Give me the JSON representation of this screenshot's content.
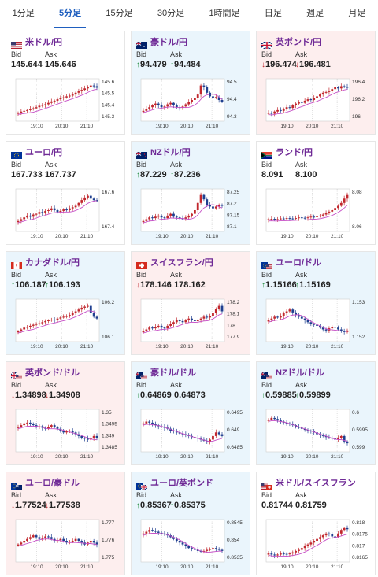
{
  "tabs": [
    {
      "label": "1分足",
      "active": false
    },
    {
      "label": "5分足",
      "active": true
    },
    {
      "label": "15分足",
      "active": false
    },
    {
      "label": "30分足",
      "active": false
    },
    {
      "label": "1時間足",
      "active": false
    },
    {
      "label": "日足",
      "active": false
    },
    {
      "label": "週足",
      "active": false
    },
    {
      "label": "月足",
      "active": false
    }
  ],
  "labels": {
    "bid": "Bid",
    "ask": "Ask"
  },
  "colors": {
    "bull": "#c1272d",
    "bear": "#1f3f8f",
    "ma": "#c64fc6",
    "tab_active": "#1f5fbf",
    "pair_text": "#6f2a96",
    "up_arrow": "#1f8a3a",
    "down_arrow": "#c1272d"
  },
  "cards": [
    {
      "name": "usd-jpy",
      "pair": "米ドル/円",
      "bg": "neutral",
      "flag": "us",
      "bid": "145.644",
      "ask": "145.646",
      "dir": "none",
      "chart_data": {
        "type": "candlestick",
        "x_ticks": [
          "19:10",
          "20:10",
          "21:10"
        ],
        "y_ticks": [
          "145.6",
          "145.5",
          "145.4",
          "145.3"
        ],
        "trend": "up",
        "points": [
          0.15,
          0.18,
          0.2,
          0.22,
          0.25,
          0.27,
          0.3,
          0.34,
          0.36,
          0.38,
          0.42,
          0.46,
          0.48,
          0.52,
          0.55,
          0.57,
          0.6,
          0.62,
          0.65,
          0.7,
          0.74,
          0.78,
          0.82,
          0.86,
          0.9,
          0.88,
          0.84
        ]
      }
    },
    {
      "name": "aud-jpy",
      "pair": "豪ドル/円",
      "bg": "up",
      "flag": "au",
      "bid": "94.479",
      "ask": "94.484",
      "dir": "up",
      "chart_data": {
        "type": "candlestick",
        "x_ticks": [
          "19:10",
          "20:10",
          "21:10"
        ],
        "y_ticks": [
          "94.5",
          "94.4",
          "94.3"
        ],
        "trend": "up",
        "points": [
          0.2,
          0.25,
          0.3,
          0.35,
          0.4,
          0.35,
          0.3,
          0.32,
          0.38,
          0.42,
          0.35,
          0.3,
          0.28,
          0.32,
          0.38,
          0.45,
          0.5,
          0.55,
          0.65,
          0.9,
          0.85,
          0.7,
          0.6,
          0.55,
          0.58,
          0.5,
          0.45
        ]
      }
    },
    {
      "name": "gbp-jpy",
      "pair": "英ポンド/円",
      "bg": "down",
      "flag": "gb",
      "bid": "196.474",
      "ask": "196.481",
      "dir": "down",
      "chart_data": {
        "type": "candlestick",
        "x_ticks": [
          "19:10",
          "20:10",
          "21:10"
        ],
        "y_ticks": [
          "196.4",
          "196.2",
          "196"
        ],
        "trend": "up",
        "points": [
          0.15,
          0.12,
          0.18,
          0.22,
          0.2,
          0.25,
          0.3,
          0.28,
          0.35,
          0.4,
          0.45,
          0.42,
          0.48,
          0.52,
          0.5,
          0.55,
          0.6,
          0.65,
          0.7,
          0.72,
          0.76,
          0.8,
          0.85,
          0.82,
          0.88,
          0.86,
          0.84
        ]
      }
    },
    {
      "name": "eur-jpy",
      "pair": "ユーロ/円",
      "bg": "neutral",
      "flag": "eu",
      "bid": "167.733",
      "ask": "167.737",
      "dir": "none",
      "chart_data": {
        "type": "candlestick",
        "x_ticks": [
          "19:10",
          "20:10",
          "21:10"
        ],
        "y_ticks": [
          "167.6",
          "167.4"
        ],
        "trend": "up",
        "points": [
          0.2,
          0.25,
          0.3,
          0.35,
          0.32,
          0.38,
          0.4,
          0.45,
          0.42,
          0.48,
          0.5,
          0.55,
          0.5,
          0.45,
          0.48,
          0.52,
          0.5,
          0.55,
          0.58,
          0.62,
          0.7,
          0.78,
          0.85,
          0.9,
          0.82,
          0.78,
          0.75
        ]
      }
    },
    {
      "name": "nzd-jpy",
      "pair": "NZドル/円",
      "bg": "up",
      "flag": "nz",
      "bid": "87.229",
      "ask": "87.236",
      "dir": "up",
      "chart_data": {
        "type": "candlestick",
        "x_ticks": [
          "19:10",
          "20:10",
          "21:10"
        ],
        "y_ticks": [
          "87.25",
          "87.2",
          "87.15",
          "87.1"
        ],
        "trend": "up",
        "points": [
          0.2,
          0.25,
          0.3,
          0.28,
          0.32,
          0.35,
          0.3,
          0.28,
          0.35,
          0.4,
          0.32,
          0.3,
          0.28,
          0.25,
          0.3,
          0.35,
          0.4,
          0.5,
          0.7,
          0.92,
          0.8,
          0.65,
          0.6,
          0.55,
          0.6,
          0.65,
          0.62
        ]
      }
    },
    {
      "name": "zar-jpy",
      "pair": "ランド/円",
      "bg": "neutral",
      "flag": "za",
      "bid": "8.091",
      "ask": "8.100",
      "dir": "none",
      "chart_data": {
        "type": "candlestick",
        "x_ticks": [
          "19:10",
          "20:10",
          "21:10"
        ],
        "y_ticks": [
          "8.08",
          "8.06"
        ],
        "trend": "up",
        "points": [
          0.25,
          0.26,
          0.24,
          0.25,
          0.27,
          0.26,
          0.28,
          0.27,
          0.26,
          0.28,
          0.3,
          0.29,
          0.28,
          0.3,
          0.32,
          0.31,
          0.33,
          0.35,
          0.38,
          0.42,
          0.46,
          0.5,
          0.56,
          0.62,
          0.7,
          0.82,
          0.92
        ]
      }
    },
    {
      "name": "cad-jpy",
      "pair": "カナダドル/円",
      "bg": "up",
      "flag": "ca",
      "bid": "106.187",
      "ask": "106.193",
      "dir": "up",
      "chart_data": {
        "type": "candlestick",
        "x_ticks": [
          "19:10",
          "20:10",
          "21:10"
        ],
        "y_ticks": [
          "106.2",
          "106.1"
        ],
        "trend": "up",
        "points": [
          0.2,
          0.25,
          0.3,
          0.32,
          0.35,
          0.38,
          0.4,
          0.42,
          0.45,
          0.48,
          0.5,
          0.52,
          0.5,
          0.55,
          0.58,
          0.6,
          0.62,
          0.65,
          0.7,
          0.75,
          0.8,
          0.85,
          0.88,
          0.9,
          0.7,
          0.6,
          0.55
        ]
      }
    },
    {
      "name": "chf-jpy",
      "pair": "スイスフラン/円",
      "bg": "down",
      "flag": "ch",
      "bid": "178.146",
      "ask": "178.162",
      "dir": "down",
      "chart_data": {
        "type": "candlestick",
        "x_ticks": [
          "19:10",
          "20:10",
          "21:10"
        ],
        "y_ticks": [
          "178.2",
          "178.1",
          "178",
          "177.9"
        ],
        "trend": "up",
        "points": [
          0.2,
          0.25,
          0.3,
          0.28,
          0.32,
          0.35,
          0.3,
          0.28,
          0.35,
          0.4,
          0.45,
          0.5,
          0.48,
          0.45,
          0.5,
          0.55,
          0.52,
          0.48,
          0.5,
          0.55,
          0.6,
          0.58,
          0.62,
          0.7,
          0.82,
          0.9,
          0.75
        ]
      }
    },
    {
      "name": "eur-usd",
      "pair": "ユーロ/ドル",
      "bg": "up",
      "flag": "eu-us",
      "bid": "1.15166",
      "ask": "1.15169",
      "dir": "up",
      "chart_data": {
        "type": "candlestick",
        "x_ticks": [
          "19:10",
          "20:10",
          "21:10"
        ],
        "y_ticks": [
          "1.153",
          "1.152"
        ],
        "trend": "down",
        "points": [
          0.5,
          0.55,
          0.6,
          0.58,
          0.62,
          0.7,
          0.75,
          0.8,
          0.72,
          0.65,
          0.6,
          0.55,
          0.5,
          0.45,
          0.4,
          0.38,
          0.35,
          0.3,
          0.25,
          0.22,
          0.28,
          0.32,
          0.3,
          0.25,
          0.2,
          0.18,
          0.22
        ]
      }
    },
    {
      "name": "gbp-usd",
      "pair": "英ポンド/ドル",
      "bg": "down",
      "flag": "gb-us",
      "bid": "1.34898",
      "ask": "1.34908",
      "dir": "down",
      "chart_data": {
        "type": "candlestick",
        "x_ticks": [
          "19:10",
          "20:10",
          "21:10"
        ],
        "y_ticks": [
          "1.35",
          "1.3495",
          "1.349",
          "1.3485"
        ],
        "trend": "down",
        "points": [
          0.6,
          0.65,
          0.7,
          0.72,
          0.68,
          0.65,
          0.6,
          0.62,
          0.58,
          0.55,
          0.6,
          0.65,
          0.6,
          0.55,
          0.5,
          0.45,
          0.48,
          0.5,
          0.45,
          0.4,
          0.35,
          0.3,
          0.28,
          0.25,
          0.3,
          0.35,
          0.3
        ]
      }
    },
    {
      "name": "aud-usd",
      "pair": "豪ドル/ドル",
      "bg": "up",
      "flag": "au-us",
      "bid": "0.64869",
      "ask": "0.64873",
      "dir": "up",
      "chart_data": {
        "type": "candlestick",
        "x_ticks": [
          "19:10",
          "20:10",
          "21:10"
        ],
        "y_ticks": [
          "0.6495",
          "0.649",
          "0.6485"
        ],
        "trend": "down",
        "points": [
          0.7,
          0.75,
          0.72,
          0.68,
          0.65,
          0.62,
          0.6,
          0.58,
          0.55,
          0.5,
          0.48,
          0.45,
          0.42,
          0.4,
          0.38,
          0.35,
          0.32,
          0.3,
          0.28,
          0.25,
          0.22,
          0.2,
          0.25,
          0.35,
          0.45,
          0.4,
          0.35
        ]
      }
    },
    {
      "name": "nzd-usd",
      "pair": "NZドル/ドル",
      "bg": "up",
      "flag": "nz-us",
      "bid": "0.59885",
      "ask": "0.59899",
      "dir": "up",
      "chart_data": {
        "type": "candlestick",
        "x_ticks": [
          "19:10",
          "20:10",
          "21:10"
        ],
        "y_ticks": [
          "0.6",
          "0.5995",
          "0.599"
        ],
        "trend": "down",
        "points": [
          0.8,
          0.85,
          0.82,
          0.78,
          0.75,
          0.72,
          0.7,
          0.68,
          0.65,
          0.6,
          0.58,
          0.55,
          0.52,
          0.5,
          0.48,
          0.45,
          0.4,
          0.38,
          0.35,
          0.32,
          0.3,
          0.28,
          0.25,
          0.3,
          0.35,
          0.2,
          0.15
        ]
      }
    },
    {
      "name": "eur-aud",
      "pair": "ユーロ/豪ドル",
      "bg": "down",
      "flag": "eu-au",
      "bid": "1.77524",
      "ask": "1.77538",
      "dir": "down",
      "chart_data": {
        "type": "candlestick",
        "x_ticks": [
          "19:10",
          "20:10",
          "21:10"
        ],
        "y_ticks": [
          "1.777",
          "1.776",
          "1.775"
        ],
        "trend": "flat",
        "points": [
          0.4,
          0.45,
          0.5,
          0.55,
          0.6,
          0.65,
          0.6,
          0.55,
          0.58,
          0.62,
          0.6,
          0.55,
          0.5,
          0.52,
          0.55,
          0.5,
          0.45,
          0.48,
          0.5,
          0.55,
          0.5,
          0.45,
          0.4,
          0.45,
          0.5,
          0.45,
          0.4
        ]
      }
    },
    {
      "name": "eur-gbp",
      "pair": "ユーロ/英ポンド",
      "bg": "up",
      "flag": "eu-gb",
      "bid": "0.85367",
      "ask": "0.85375",
      "dir": "up",
      "chart_data": {
        "type": "candlestick",
        "x_ticks": [
          "19:10",
          "20:10",
          "21:10"
        ],
        "y_ticks": [
          "0.8545",
          "0.854",
          "0.8535"
        ],
        "trend": "down",
        "points": [
          0.7,
          0.75,
          0.8,
          0.78,
          0.75,
          0.72,
          0.7,
          0.68,
          0.65,
          0.6,
          0.55,
          0.5,
          0.45,
          0.4,
          0.35,
          0.3,
          0.28,
          0.25,
          0.22,
          0.2,
          0.22,
          0.25,
          0.28,
          0.3,
          0.28,
          0.25,
          0.22
        ]
      }
    },
    {
      "name": "usd-chf",
      "pair": "米ドル/スイスフラン",
      "bg": "neutral",
      "flag": "us-ch",
      "bid": "0.81744",
      "ask": "0.81759",
      "dir": "none",
      "chart_data": {
        "type": "candlestick",
        "x_ticks": [
          "19:10",
          "20:10",
          "21:10"
        ],
        "y_ticks": [
          "0.818",
          "0.8175",
          "0.817",
          "0.8165"
        ],
        "trend": "up",
        "points": [
          0.15,
          0.12,
          0.1,
          0.12,
          0.15,
          0.14,
          0.13,
          0.15,
          0.18,
          0.22,
          0.25,
          0.3,
          0.35,
          0.4,
          0.45,
          0.5,
          0.55,
          0.6,
          0.65,
          0.7,
          0.68,
          0.62,
          0.6,
          0.7,
          0.8,
          0.85,
          0.82
        ]
      }
    }
  ]
}
